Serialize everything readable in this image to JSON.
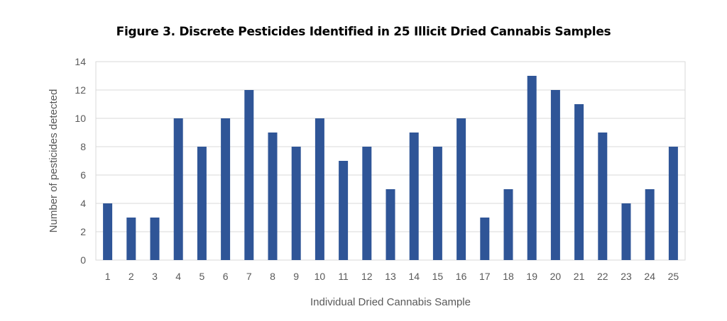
{
  "chart_data": {
    "type": "bar",
    "title": "Figure 3. Discrete Pesticides Identified in 25 Illicit Dried Cannabis Samples",
    "xlabel": "Individual Dried Cannabis Sample",
    "ylabel": "Number of pesticides detected",
    "categories": [
      "1",
      "2",
      "3",
      "4",
      "5",
      "6",
      "7",
      "8",
      "9",
      "10",
      "11",
      "12",
      "13",
      "14",
      "15",
      "16",
      "17",
      "18",
      "19",
      "20",
      "21",
      "22",
      "23",
      "24",
      "25"
    ],
    "values": [
      4,
      3,
      3,
      10,
      8,
      10,
      12,
      9,
      8,
      10,
      7,
      8,
      5,
      9,
      8,
      10,
      3,
      5,
      13,
      12,
      11,
      9,
      4,
      5,
      8
    ],
    "ylim": [
      0,
      14
    ],
    "yticks": [
      0,
      2,
      4,
      6,
      8,
      10,
      12,
      14
    ],
    "grid": true,
    "bar_color": "#2F5597",
    "grid_color": "#D9D9D9"
  }
}
